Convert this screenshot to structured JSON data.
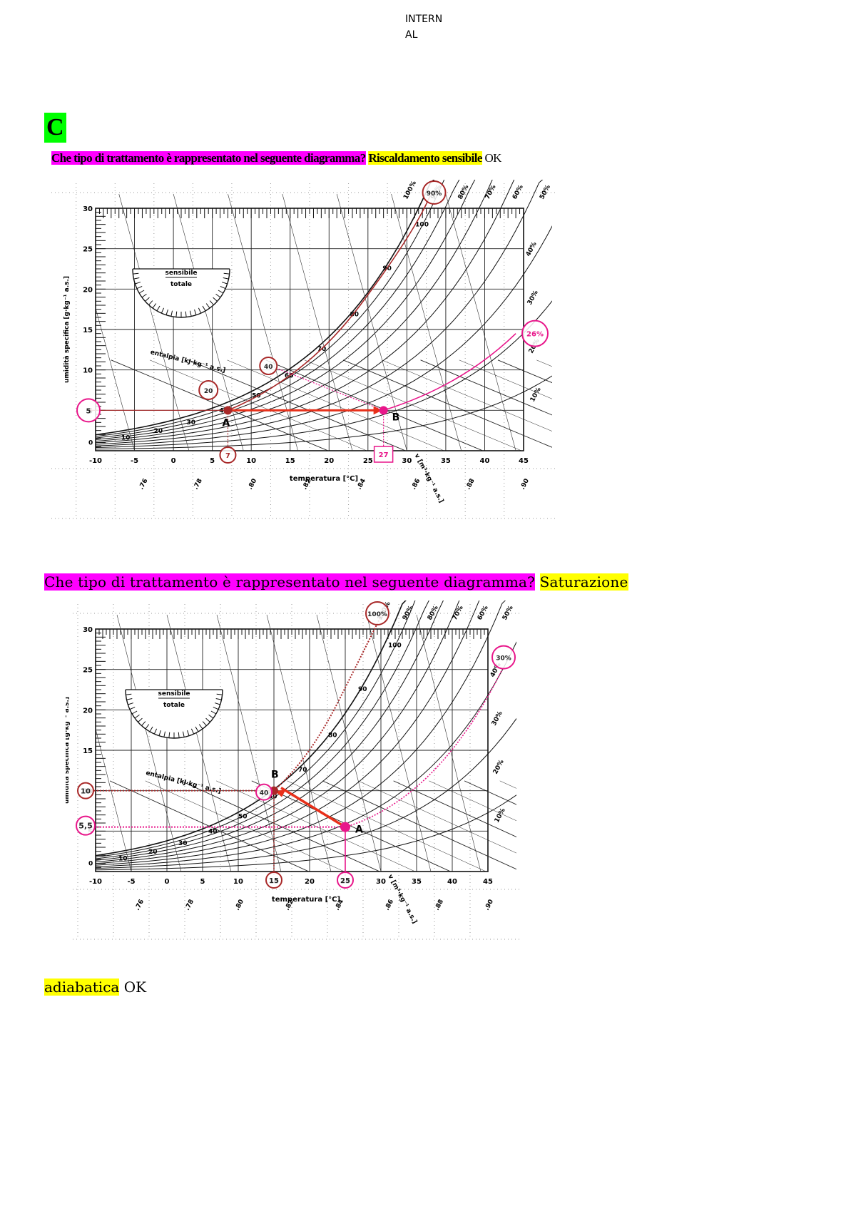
{
  "header": {
    "classification": "INTERN\nAL"
  },
  "section": {
    "letter": "C"
  },
  "q1": {
    "question": "Che tipo di trattamento è rappresentato nel seguente diagramma?",
    "answer": "Riscaldamento sensibile",
    "status": "OK"
  },
  "q2": {
    "question": "Che tipo di trattamento è rappresentato nel seguente diagramma?",
    "answer_part1": "Saturazione",
    "answer_part2": "adiabatica",
    "status": "OK"
  },
  "chart_common": {
    "x_ticks": [
      "-10",
      "-5",
      "0",
      "5",
      "10",
      "15",
      "20",
      "25",
      "30",
      "35",
      "40",
      "45"
    ],
    "y_ticks": [
      "5",
      "10",
      "15",
      "20",
      "25",
      "30"
    ],
    "xlabel": "temperatura [°C]",
    "ylabel": "umidità specifica [g·kg⁻¹ a.s.]",
    "enthalpy_label": "entalpia [kJ·kg⁻¹ a.s.]",
    "volume_label": "v [m³·kg⁻¹ a.s.]",
    "protractor_top": "sensibile",
    "protractor_bottom": "totale",
    "rh_labels": [
      "100%",
      "90%",
      "80%",
      "70%",
      "60%",
      "50%",
      "40%",
      "30%",
      "20%",
      "10%"
    ],
    "enthalpy_values": [
      "0",
      "10",
      "20",
      "30",
      "40",
      "50",
      "60",
      "70",
      "80",
      "90",
      "100"
    ],
    "volume_values": [
      ".76",
      ".78",
      ".80",
      ".82",
      ".84",
      ".86",
      ".88",
      ".90"
    ],
    "colors": {
      "grid": "#222222",
      "red": "#e8301a",
      "magenta": "#e8168a",
      "darkred": "#a82828"
    }
  },
  "chart_data": [
    {
      "type": "scatter",
      "title": "",
      "xlabel": "temperatura [°C]",
      "ylabel": "umidità specifica [g·kg⁻¹ a.s.]",
      "xlim": [
        -10,
        45
      ],
      "ylim": [
        0,
        30
      ],
      "points": [
        {
          "name": "A",
          "x": 7,
          "y": 5
        },
        {
          "name": "B",
          "x": 27,
          "y": 5
        }
      ],
      "callouts": {
        "humidity": "5",
        "tA": "7",
        "tB": "27",
        "hA": "20",
        "hB": "40",
        "rhA": "90%",
        "rhB": "26%"
      }
    },
    {
      "type": "scatter",
      "title": "",
      "xlabel": "temperatura [°C]",
      "ylabel": "umidità specifica [g·kg⁻¹ a.s.]",
      "xlim": [
        -10,
        45
      ],
      "ylim": [
        0,
        30
      ],
      "points": [
        {
          "name": "A",
          "x": 25,
          "y": 5.5
        },
        {
          "name": "B",
          "x": 15,
          "y": 10
        }
      ],
      "callouts": {
        "humidityA": "5,5",
        "humidityB": "10",
        "tA": "25",
        "tB": "15",
        "hB": "40",
        "rhA": "30%",
        "rhB": "100%"
      }
    }
  ]
}
